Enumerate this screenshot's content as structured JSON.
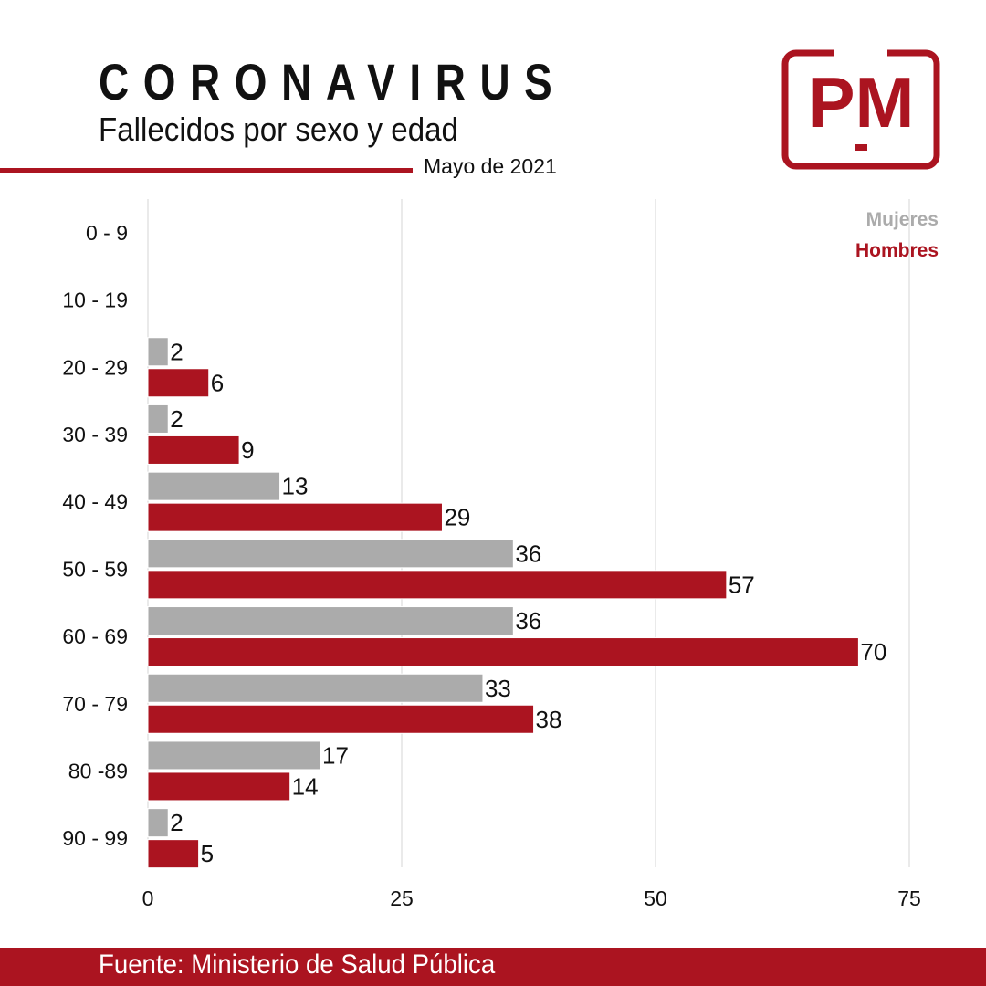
{
  "header": {
    "title": "CORONAVIRUS",
    "subtitle": "Fallecidos por sexo y edad",
    "date": "Mayo de 2021",
    "logo_text": "PM"
  },
  "footer": {
    "source": "Fuente: Ministerio de Salud Pública"
  },
  "colors": {
    "accent": "#ab1420",
    "mujeres": "#ababab",
    "grid": "#d6d6d6"
  },
  "chart_data": {
    "type": "bar",
    "orientation": "horizontal",
    "title": "Fallecidos por sexo y edad",
    "categories": [
      "0 - 9",
      "10 - 19",
      "20 - 29",
      "30 - 39",
      "40 - 49",
      "50 - 59",
      "60 - 69",
      "70 - 79",
      "80 -89",
      "90 - 99"
    ],
    "series": [
      {
        "name": "Mujeres",
        "values": [
          null,
          null,
          2,
          2,
          13,
          36,
          36,
          33,
          17,
          2
        ]
      },
      {
        "name": "Hombres",
        "values": [
          null,
          null,
          6,
          9,
          29,
          57,
          70,
          38,
          14,
          5
        ]
      }
    ],
    "xlim": [
      0,
      75
    ],
    "xticks": [
      0,
      25,
      50,
      75
    ],
    "grid": true,
    "legend_position": "top-right"
  }
}
